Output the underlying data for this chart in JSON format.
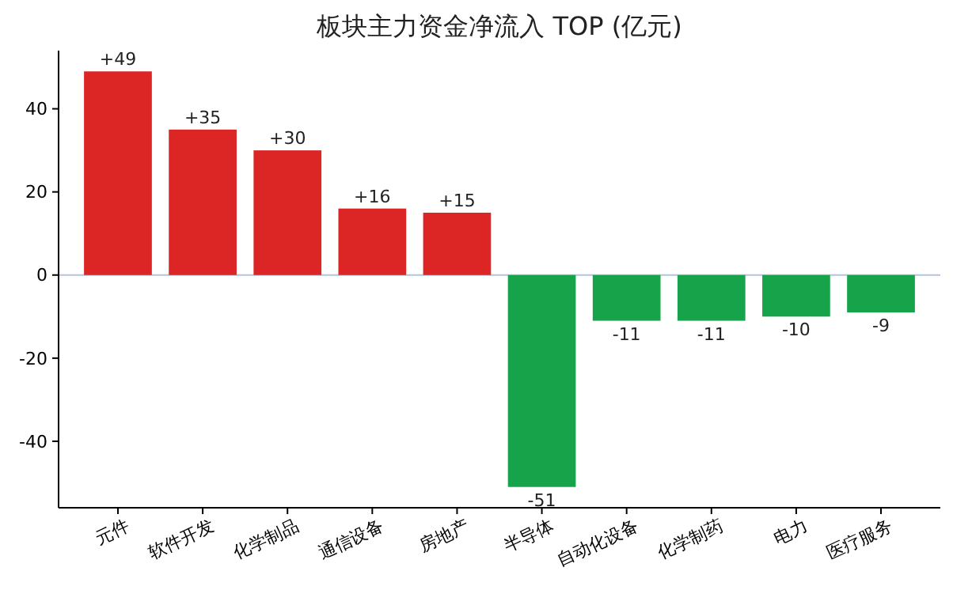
{
  "chart_data": {
    "type": "bar",
    "title": "板块主力资金净流入 TOP (亿元)",
    "categories": [
      "元件",
      "软件开发",
      "化学制品",
      "通信设备",
      "房地产",
      "半导体",
      "自动化设备",
      "化学制药",
      "电力",
      "医疗服务"
    ],
    "values": [
      49,
      35,
      30,
      16,
      15,
      -51,
      -11,
      -11,
      -10,
      -9
    ],
    "colors": [
      "#dc2626",
      "#dc2626",
      "#dc2626",
      "#dc2626",
      "#dc2626",
      "#16a34a",
      "#16a34a",
      "#16a34a",
      "#16a34a",
      "#16a34a"
    ],
    "value_labels": [
      "+49",
      "+35",
      "+30",
      "+16",
      "+15",
      "-51",
      "-11",
      "-11",
      "-10",
      "-9"
    ],
    "ylim": [
      -56,
      54
    ],
    "yticks": [
      -40,
      -20,
      0,
      20,
      40
    ],
    "grid": false,
    "ref_lines": [
      {
        "axis": "y",
        "value": 0,
        "color": "#b0c4de"
      }
    ]
  }
}
